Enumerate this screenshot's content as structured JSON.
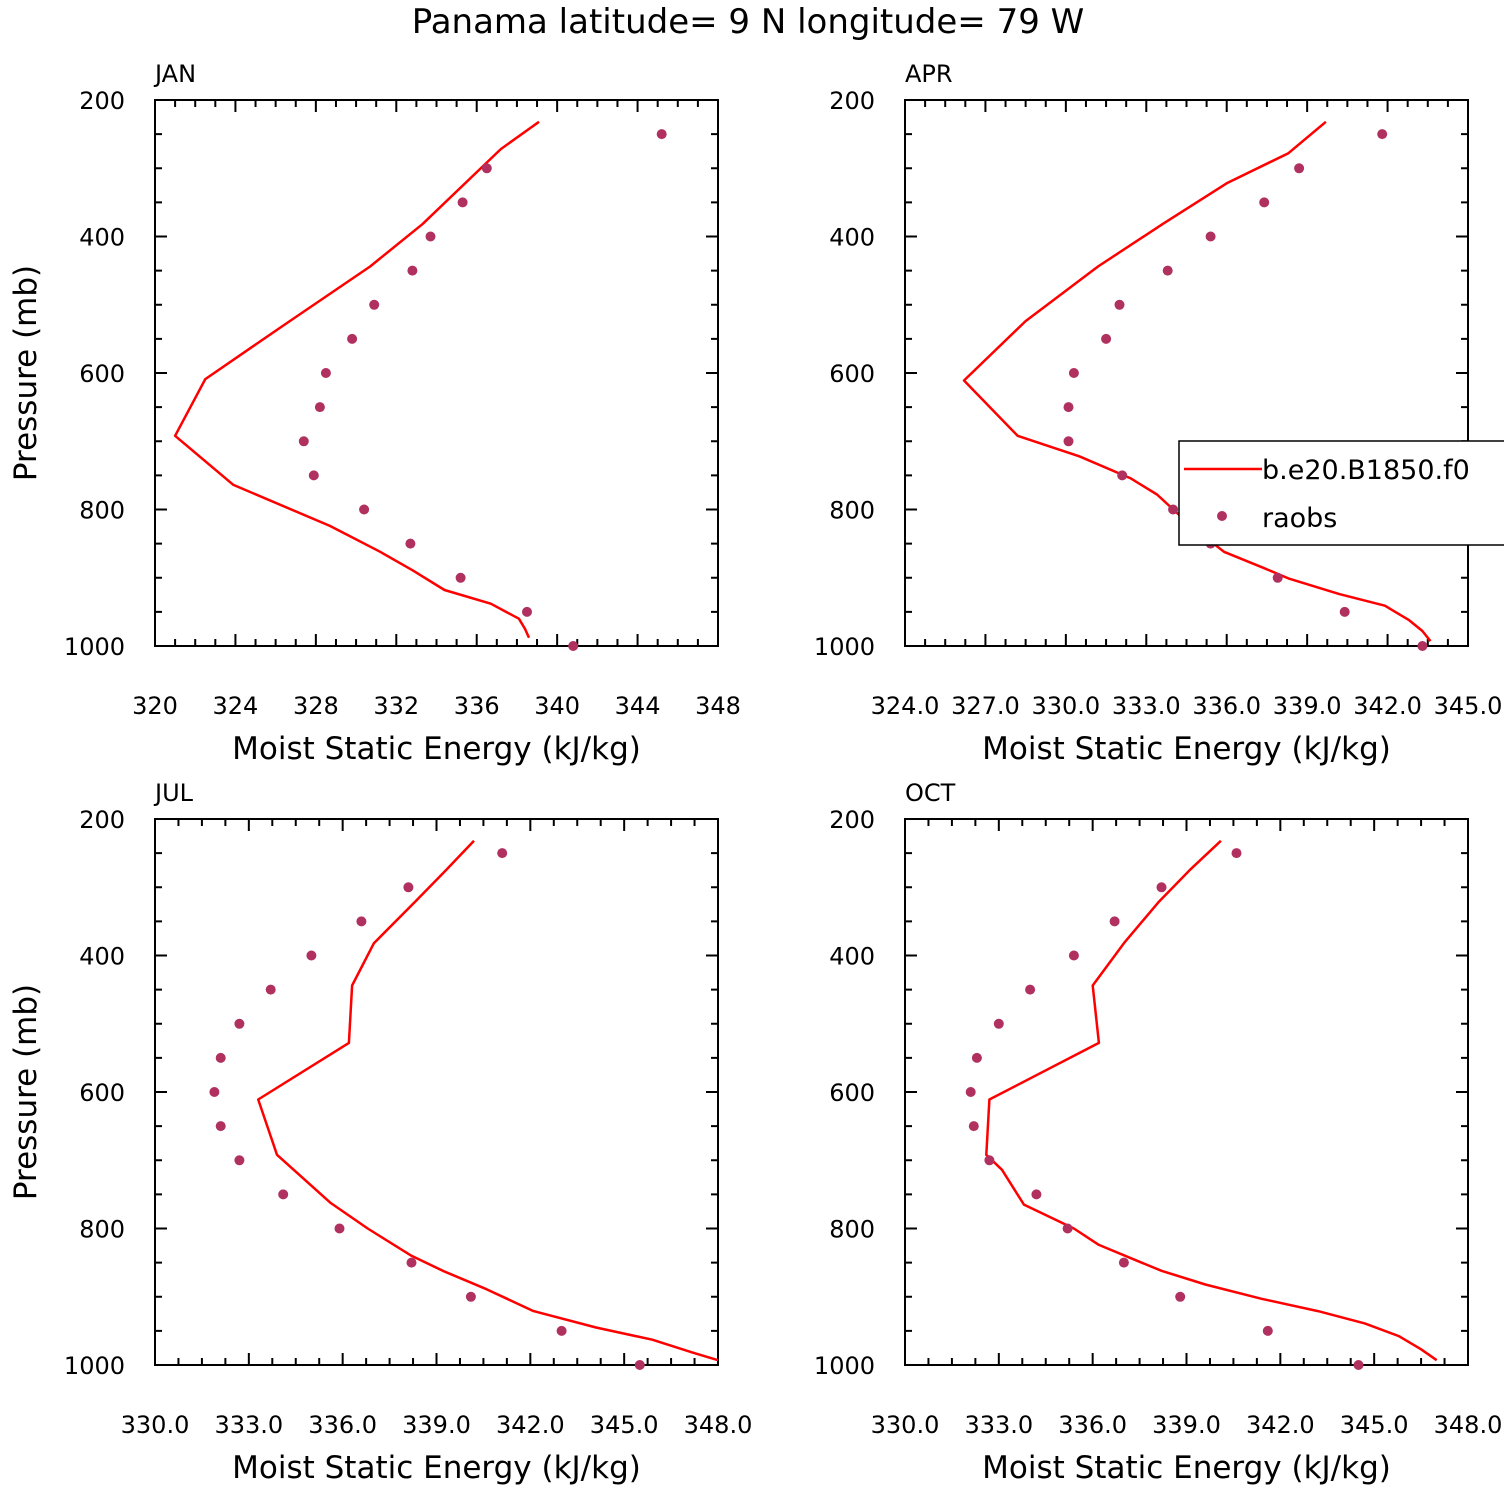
{
  "title": "Panama  latitude= 9 N longitude= 79 W",
  "colors": {
    "model": "#ff0000",
    "obs": "#b03060",
    "axes": "#000000"
  },
  "legend": {
    "model": "b.e20.B1850.f0",
    "obs": "raobs",
    "placement": "right edge of APR panel"
  },
  "chart_data": [
    {
      "type": "line",
      "panel": "JAN",
      "title": "JAN",
      "xlabel": "Moist Static Energy (kJ/kg)",
      "ylabel": "Pressure (mb)",
      "xlim": [
        320,
        348
      ],
      "ylim": [
        1000,
        200
      ],
      "xticks": [
        320,
        324,
        328,
        332,
        336,
        340,
        344,
        348
      ],
      "xtick_labels": [
        "320",
        "324",
        "328",
        "332",
        "336",
        "340",
        "344",
        "348"
      ],
      "yticks": [
        200,
        400,
        600,
        800,
        1000
      ],
      "ytick_labels": [
        "200",
        "400",
        "600",
        "800",
        "1000"
      ],
      "series": [
        {
          "name": "b.e20.B1850.f0",
          "kind": "line",
          "points": [
            [
              339.1,
              232
            ],
            [
              337.2,
              272
            ],
            [
              333.3,
              382
            ],
            [
              330.7,
              444
            ],
            [
              326.3,
              532
            ],
            [
              322.5,
              609
            ],
            [
              321.0,
              692
            ],
            [
              323.9,
              764
            ],
            [
              328.7,
              824
            ],
            [
              331.2,
              862
            ],
            [
              332.8,
              889
            ],
            [
              334.4,
              918
            ],
            [
              336.7,
              938
            ],
            [
              338.1,
              960
            ],
            [
              338.4,
              975
            ],
            [
              338.6,
              988
            ]
          ]
        },
        {
          "name": "raobs",
          "kind": "scatter",
          "points": [
            [
              345.2,
              250
            ],
            [
              336.5,
              300
            ],
            [
              335.3,
              350
            ],
            [
              333.7,
              400
            ],
            [
              332.8,
              450
            ],
            [
              330.9,
              500
            ],
            [
              329.8,
              550
            ],
            [
              328.5,
              600
            ],
            [
              328.2,
              650
            ],
            [
              327.4,
              700
            ],
            [
              327.9,
              750
            ],
            [
              330.4,
              800
            ],
            [
              332.7,
              850
            ],
            [
              335.2,
              900
            ],
            [
              338.5,
              950
            ],
            [
              340.8,
              1000
            ]
          ]
        }
      ]
    },
    {
      "type": "line",
      "panel": "APR",
      "title": "APR",
      "xlabel": "Moist Static Energy (kJ/kg)",
      "ylabel": "",
      "xlim": [
        324.0,
        345.0
      ],
      "ylim": [
        1000,
        200
      ],
      "xticks": [
        324,
        327,
        330,
        333,
        336,
        339,
        342,
        345
      ],
      "xtick_labels": [
        "324.0",
        "327.0",
        "330.0",
        "333.0",
        "336.0",
        "339.0",
        "342.0",
        "345.0"
      ],
      "yticks": [
        200,
        400,
        600,
        800,
        1000
      ],
      "ytick_labels": [
        "200",
        "400",
        "600",
        "800",
        "1000"
      ],
      "series": [
        {
          "name": "b.e20.B1850.f0",
          "kind": "line",
          "points": [
            [
              339.7,
              232
            ],
            [
              338.3,
              278
            ],
            [
              336.0,
              322
            ],
            [
              333.6,
              382
            ],
            [
              331.2,
              444
            ],
            [
              328.5,
              524
            ],
            [
              326.2,
              611
            ],
            [
              328.2,
              692
            ],
            [
              330.5,
              722
            ],
            [
              332.4,
              754
            ],
            [
              333.4,
              778
            ],
            [
              334.2,
              807
            ],
            [
              334.8,
              828
            ],
            [
              335.9,
              862
            ],
            [
              337.4,
              886
            ],
            [
              338.3,
              901
            ],
            [
              340.2,
              924
            ],
            [
              341.9,
              941
            ],
            [
              342.8,
              962
            ],
            [
              343.3,
              978
            ],
            [
              343.6,
              993
            ]
          ]
        },
        {
          "name": "raobs",
          "kind": "scatter",
          "points": [
            [
              341.8,
              250
            ],
            [
              338.7,
              300
            ],
            [
              337.4,
              350
            ],
            [
              335.4,
              400
            ],
            [
              333.8,
              450
            ],
            [
              332.0,
              500
            ],
            [
              331.5,
              550
            ],
            [
              330.3,
              600
            ],
            [
              330.1,
              650
            ],
            [
              330.1,
              700
            ],
            [
              332.1,
              750
            ],
            [
              334.0,
              800
            ],
            [
              335.4,
              850
            ],
            [
              337.9,
              900
            ],
            [
              340.4,
              950
            ],
            [
              343.3,
              1000
            ]
          ]
        }
      ]
    },
    {
      "type": "line",
      "panel": "JUL",
      "title": "JUL",
      "xlabel": "Moist Static Energy (kJ/kg)",
      "ylabel": "Pressure (mb)",
      "xlim": [
        330.0,
        348.0
      ],
      "ylim": [
        1000,
        200
      ],
      "xticks": [
        330,
        333,
        336,
        339,
        342,
        345,
        348
      ],
      "xtick_labels": [
        "330.0",
        "333.0",
        "336.0",
        "339.0",
        "342.0",
        "345.0",
        "348.0"
      ],
      "yticks": [
        200,
        400,
        600,
        800,
        1000
      ],
      "ytick_labels": [
        "200",
        "400",
        "600",
        "800",
        "1000"
      ],
      "series": [
        {
          "name": "b.e20.B1850.f0",
          "kind": "line",
          "points": [
            [
              340.2,
              232
            ],
            [
              339.3,
              275
            ],
            [
              338.3,
              322
            ],
            [
              337.0,
              382
            ],
            [
              336.3,
              444
            ],
            [
              336.2,
              528
            ],
            [
              333.3,
              611
            ],
            [
              333.9,
              692
            ],
            [
              335.6,
              762
            ],
            [
              336.8,
              800
            ],
            [
              338.2,
              840
            ],
            [
              339.2,
              862
            ],
            [
              340.6,
              889
            ],
            [
              342.1,
              921
            ],
            [
              344.1,
              945
            ],
            [
              345.9,
              963
            ],
            [
              347.2,
              982
            ],
            [
              348.0,
              993
            ]
          ]
        },
        {
          "name": "raobs",
          "kind": "scatter",
          "points": [
            [
              341.1,
              250
            ],
            [
              338.1,
              300
            ],
            [
              336.6,
              350
            ],
            [
              335.0,
              400
            ],
            [
              333.7,
              450
            ],
            [
              332.7,
              500
            ],
            [
              332.1,
              550
            ],
            [
              331.9,
              600
            ],
            [
              332.1,
              650
            ],
            [
              332.7,
              700
            ],
            [
              334.1,
              750
            ],
            [
              335.9,
              800
            ],
            [
              338.2,
              850
            ],
            [
              340.1,
              900
            ],
            [
              343.0,
              950
            ],
            [
              345.5,
              1000
            ]
          ]
        }
      ]
    },
    {
      "type": "line",
      "panel": "OCT",
      "title": "OCT",
      "xlabel": "Moist Static Energy (kJ/kg)",
      "ylabel": "",
      "xlim": [
        330.0,
        348.0
      ],
      "ylim": [
        1000,
        200
      ],
      "xticks": [
        330,
        333,
        336,
        339,
        342,
        345,
        348
      ],
      "xtick_labels": [
        "330.0",
        "333.0",
        "336.0",
        "339.0",
        "342.0",
        "345.0",
        "348.0"
      ],
      "yticks": [
        200,
        400,
        600,
        800,
        1000
      ],
      "ytick_labels": [
        "200",
        "400",
        "600",
        "800",
        "1000"
      ],
      "series": [
        {
          "name": "b.e20.B1850.f0",
          "kind": "line",
          "points": [
            [
              340.1,
              232
            ],
            [
              339.1,
              275
            ],
            [
              338.1,
              322
            ],
            [
              337.0,
              382
            ],
            [
              336.0,
              444
            ],
            [
              336.2,
              528
            ],
            [
              332.7,
              611
            ],
            [
              332.6,
              692
            ],
            [
              333.1,
              714
            ],
            [
              333.8,
              765
            ],
            [
              335.4,
              800
            ],
            [
              336.2,
              824
            ],
            [
              337.3,
              845
            ],
            [
              338.2,
              862
            ],
            [
              339.6,
              882
            ],
            [
              341.4,
              903
            ],
            [
              343.2,
              921
            ],
            [
              344.7,
              939
            ],
            [
              345.8,
              958
            ],
            [
              346.5,
              977
            ],
            [
              347.0,
              993
            ]
          ]
        },
        {
          "name": "raobs",
          "kind": "scatter",
          "points": [
            [
              340.6,
              250
            ],
            [
              338.2,
              300
            ],
            [
              336.7,
              350
            ],
            [
              335.4,
              400
            ],
            [
              334.0,
              450
            ],
            [
              333.0,
              500
            ],
            [
              332.3,
              550
            ],
            [
              332.1,
              600
            ],
            [
              332.2,
              650
            ],
            [
              332.7,
              700
            ],
            [
              334.2,
              750
            ],
            [
              335.2,
              800
            ],
            [
              337.0,
              850
            ],
            [
              338.8,
              900
            ],
            [
              341.6,
              950
            ],
            [
              344.5,
              1000
            ]
          ]
        }
      ]
    }
  ]
}
